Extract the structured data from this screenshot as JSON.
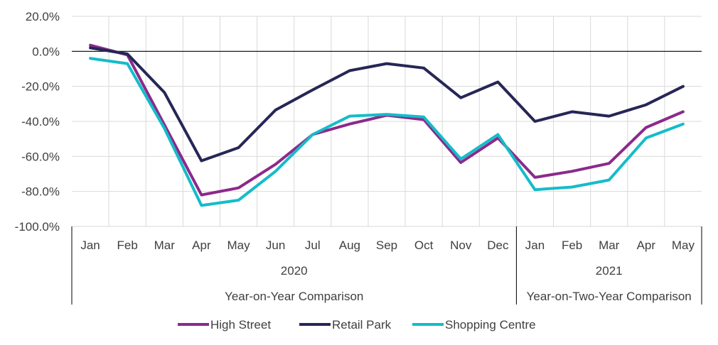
{
  "chart_data": {
    "type": "line",
    "categories": [
      "Jan",
      "Feb",
      "Mar",
      "Apr",
      "May",
      "Jun",
      "Jul",
      "Aug",
      "Sep",
      "Oct",
      "Nov",
      "Dec",
      "Jan",
      "Feb",
      "Mar",
      "Apr",
      "May"
    ],
    "year_groups": [
      {
        "label": "2020",
        "count": 12,
        "description": "Year-on-Year Comparison"
      },
      {
        "label": "2021",
        "count": 5,
        "description": "Year-on-Two-Year Comparison"
      }
    ],
    "series": [
      {
        "name": "High Street",
        "color": "#8B2A8B",
        "values": [
          3.5,
          -2.0,
          -42.0,
          -82.0,
          -78.0,
          -64.5,
          -47.5,
          -41.5,
          -36.5,
          -39.0,
          -63.5,
          -49.5,
          -72.0,
          -68.5,
          -64.0,
          -43.5,
          -34.5
        ]
      },
      {
        "name": "Retail Park",
        "color": "#262656",
        "values": [
          2.0,
          -1.5,
          -23.5,
          -62.5,
          -55.0,
          -33.5,
          -22.0,
          -11.0,
          -7.0,
          -9.5,
          -26.5,
          -17.5,
          -40.0,
          -34.5,
          -37.0,
          -30.5,
          -20.0
        ]
      },
      {
        "name": "Shopping Centre",
        "color": "#14BCC9",
        "values": [
          -4.0,
          -7.0,
          -44.0,
          -88.0,
          -85.0,
          -68.5,
          -47.5,
          -37.0,
          -36.0,
          -37.5,
          -61.5,
          -47.5,
          -79.0,
          -77.5,
          -73.5,
          -49.5,
          -41.5
        ]
      }
    ],
    "y_ticks": [
      "20.0%",
      "0.0%",
      "-20.0%",
      "-40.0%",
      "-60.0%",
      "-80.0%",
      "-100.0%"
    ],
    "ylim": [
      -100,
      20
    ],
    "grid": true,
    "legend_position": "bottom"
  }
}
